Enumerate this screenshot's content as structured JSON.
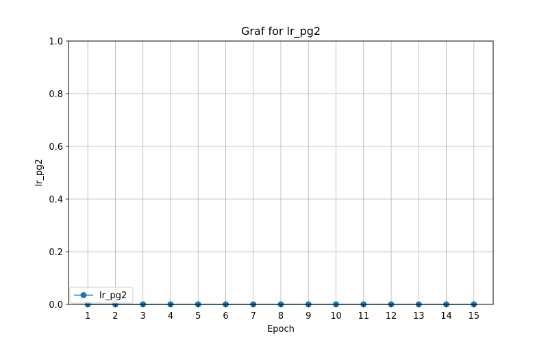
{
  "chart_data": {
    "type": "line",
    "title": "Graf for lr_pg2",
    "xlabel": "Epoch",
    "ylabel": "lr_pg2",
    "x": [
      1,
      2,
      3,
      4,
      5,
      6,
      7,
      8,
      9,
      10,
      11,
      12,
      13,
      14,
      15
    ],
    "series": [
      {
        "name": "lr_pg2",
        "values": [
          0,
          0,
          0,
          0,
          0,
          0,
          0,
          0,
          0,
          0,
          0,
          0,
          0,
          0,
          0
        ],
        "color": "#1f77b4",
        "marker": "circle"
      }
    ],
    "xlim": [
      0.3,
      15.7
    ],
    "ylim": [
      0,
      1
    ],
    "yticks": [
      "0.0",
      "0.2",
      "0.4",
      "0.6",
      "0.8",
      "1.0"
    ],
    "xticks": [
      "1",
      "2",
      "3",
      "4",
      "5",
      "6",
      "7",
      "8",
      "9",
      "10",
      "11",
      "12",
      "13",
      "14",
      "15"
    ],
    "grid": true,
    "legend_position": "lower-left"
  }
}
